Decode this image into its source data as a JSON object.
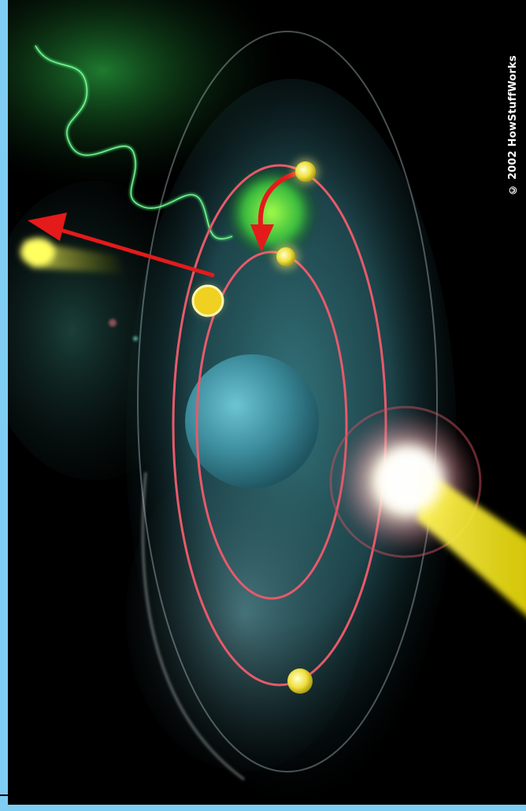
{
  "copyright": "© 2002 HowStuffWorks",
  "colors": {
    "background": "#000000",
    "frame": "#7fcdf2",
    "orbit": "#e85a6a",
    "electron": "#f4e23a",
    "nucleus": "#3f8fa0",
    "photon_wave": "#3fd86a",
    "arrow": "#e51a1a",
    "cloud": "#2f6f78",
    "flash": "#ffffff"
  },
  "icons": {
    "nucleus": "nucleus-sphere",
    "electron": "electron-dot",
    "photon": "wavy-photon-line",
    "transition": "curved-arrow",
    "ejection": "straight-arrow"
  }
}
